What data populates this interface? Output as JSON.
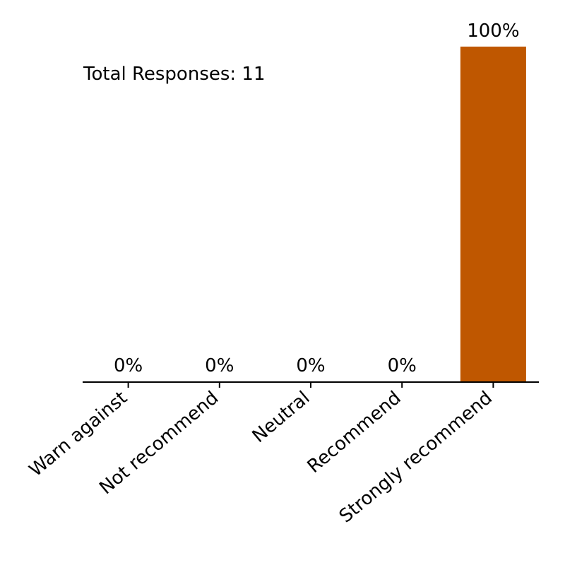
{
  "chart_data": {
    "type": "bar",
    "categories": [
      "Warn against",
      "Not recommend",
      "Neutral",
      "Recommend",
      "Strongly recommend"
    ],
    "values": [
      0,
      0,
      0,
      0,
      100
    ],
    "value_labels": [
      "0%",
      "0%",
      "0%",
      "0%",
      "100%"
    ],
    "ylim": [
      0,
      100
    ],
    "annotation": "Total Responses: 11",
    "bar_color": "#bf5700",
    "grid": false
  }
}
